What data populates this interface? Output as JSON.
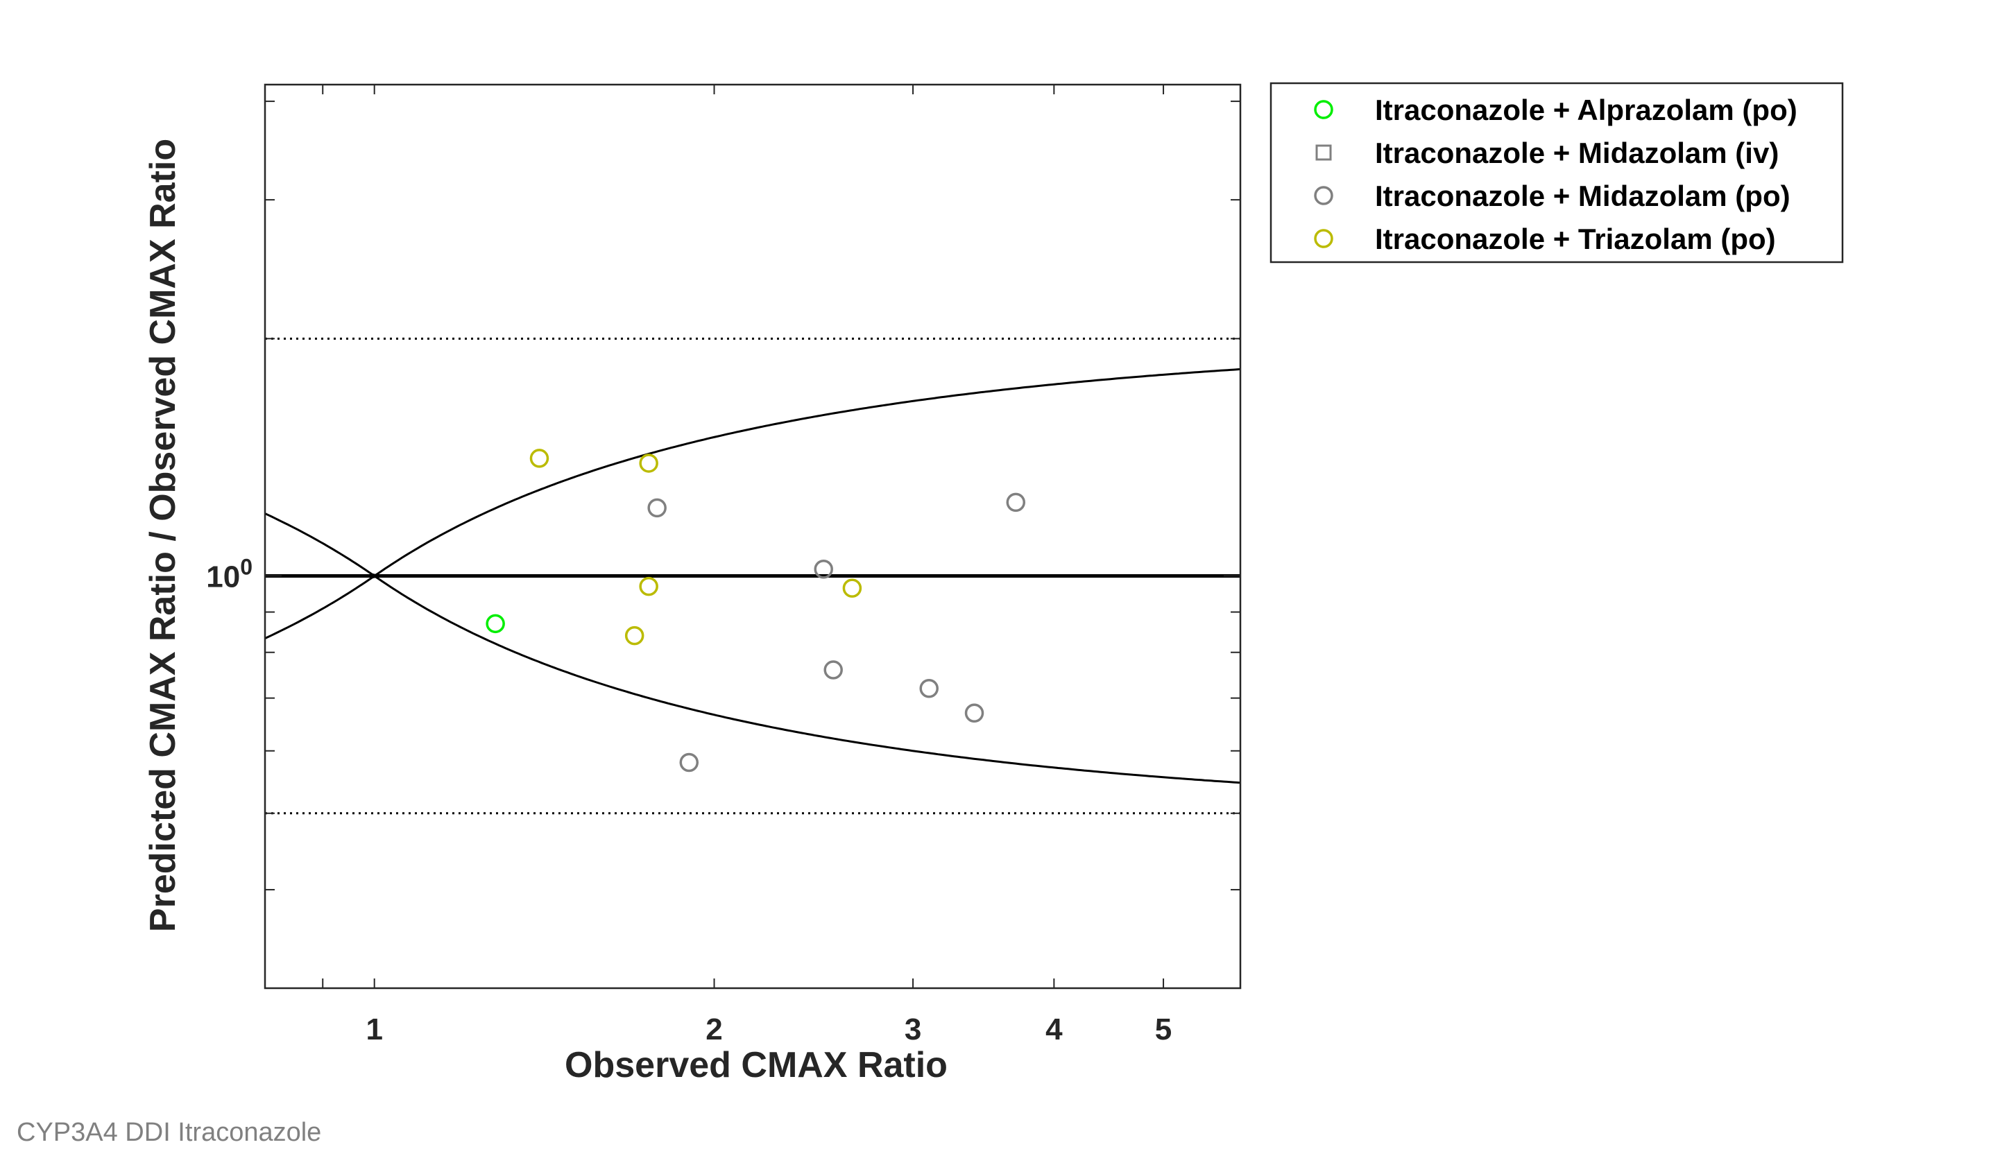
{
  "footer": "CYP3A4 DDI Itraconazole",
  "chart_data": {
    "type": "scatter",
    "xlabel": "Observed CMAX Ratio",
    "ylabel": "Predicted CMAX Ratio / Observed CMAX Ratio",
    "x_scale": "log",
    "y_scale": "log",
    "xlim": [
      0.8,
      5.85
    ],
    "ylim": [
      0.3,
      4.2
    ],
    "x_ticks": [
      {
        "value": 1,
        "label": "1"
      },
      {
        "value": 2,
        "label": "2"
      },
      {
        "value": 3,
        "label": "3"
      },
      {
        "value": 4,
        "label": "4"
      },
      {
        "value": 5,
        "label": "5"
      }
    ],
    "y_tick_label": {
      "base": "10",
      "exponent": "0",
      "value": 1
    },
    "reference_lines": {
      "unity": 1,
      "dotted": [
        2,
        0.5
      ],
      "guest_limit_delta": 1
    },
    "grid": false,
    "legend_position": "outside-top-right",
    "series": [
      {
        "name": "Itraconazole + Alprazolam (po)",
        "marker": "circle",
        "color": "#00ee00",
        "points": [
          [
            1.28,
            0.87
          ]
        ]
      },
      {
        "name": "Itraconazole + Midazolam (iv)",
        "marker": "square",
        "color": "#808080",
        "points": []
      },
      {
        "name": "Itraconazole + Midazolam (po)",
        "marker": "circle",
        "color": "#808080",
        "points": [
          [
            1.78,
            1.22
          ],
          [
            2.5,
            1.02
          ],
          [
            2.55,
            0.76
          ],
          [
            3.1,
            0.72
          ],
          [
            3.4,
            0.67
          ],
          [
            3.7,
            1.24
          ],
          [
            1.9,
            0.58
          ]
        ]
      },
      {
        "name": "Itraconazole + Triazolam (po)",
        "marker": "circle",
        "color": "#bbbb00",
        "points": [
          [
            1.4,
            1.41
          ],
          [
            1.75,
            1.39
          ],
          [
            1.75,
            0.97
          ],
          [
            1.7,
            0.84
          ],
          [
            2.65,
            0.965
          ]
        ]
      }
    ]
  }
}
